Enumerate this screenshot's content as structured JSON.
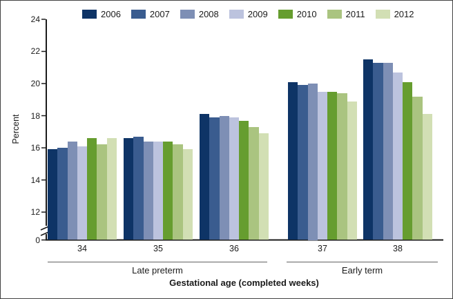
{
  "figure": {
    "background": "#ffffff",
    "border_color": "#414141",
    "text_color": "#1a1a1a",
    "axis_color": "#1a1a1a",
    "group_underline_color": "#8c8c8c"
  },
  "chart_data": {
    "type": "bar",
    "title": "",
    "ylabel": "Percent",
    "xlabel": "Gestational age (completed weeks)",
    "categories": [
      "34",
      "35",
      "36",
      "37",
      "38"
    ],
    "category_groups": [
      {
        "label": "Late preterm",
        "categories": [
          "34",
          "35",
          "36"
        ]
      },
      {
        "label": "Early term",
        "categories": [
          "37",
          "38"
        ]
      }
    ],
    "series": [
      {
        "name": "2006",
        "color": "#0e3466",
        "values": [
          15.9,
          16.6,
          18.1,
          20.1,
          21.5
        ]
      },
      {
        "name": "2007",
        "color": "#3a5c8f",
        "values": [
          16.0,
          16.7,
          17.9,
          19.9,
          21.3
        ]
      },
      {
        "name": "2008",
        "color": "#7e8fb5",
        "values": [
          16.4,
          16.4,
          18.0,
          20.0,
          21.3
        ]
      },
      {
        "name": "2009",
        "color": "#bcc3de",
        "values": [
          16.1,
          16.4,
          17.9,
          19.5,
          20.7
        ]
      },
      {
        "name": "2010",
        "color": "#669d2f",
        "values": [
          16.6,
          16.4,
          17.7,
          19.5,
          20.1
        ]
      },
      {
        "name": "2011",
        "color": "#aac480",
        "values": [
          16.2,
          16.2,
          17.3,
          19.4,
          19.2
        ]
      },
      {
        "name": "2012",
        "color": "#d2dfb4",
        "values": [
          16.6,
          15.9,
          16.9,
          18.9,
          18.1
        ]
      }
    ],
    "y_ticks": [
      0,
      12,
      14,
      16,
      18,
      20,
      22,
      24
    ],
    "ylim": [
      0,
      24
    ],
    "axis_break": {
      "between": [
        0,
        12
      ]
    },
    "legend_position": "top",
    "grid": false
  }
}
